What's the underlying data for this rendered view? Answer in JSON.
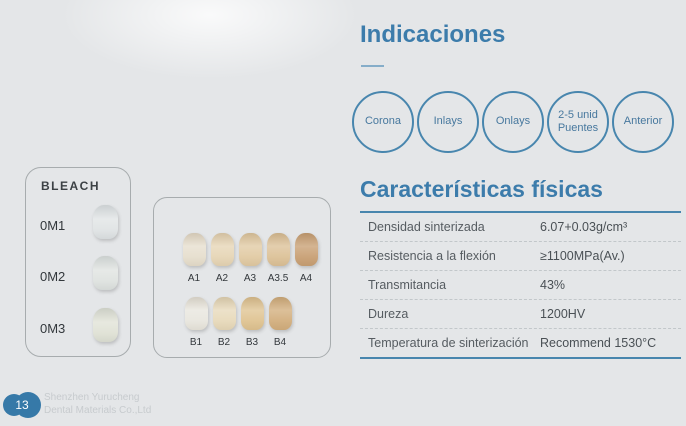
{
  "page": {
    "background": "#e4e6e8",
    "accent_blue": "#3c7cab",
    "circle_blue": "#4886ae"
  },
  "indications": {
    "title": "Indicaciones",
    "circles": [
      {
        "label": "Corona",
        "line1": "Corona",
        "line2": ""
      },
      {
        "label": "Inlays",
        "line1": "Inlays",
        "line2": ""
      },
      {
        "label": "Onlays",
        "line1": "Onlays",
        "line2": ""
      },
      {
        "label": "2-5 unid Puentes",
        "line1": "2-5 unid",
        "line2": "Puentes"
      },
      {
        "label": "Anterior",
        "line1": "Anterior",
        "line2": ""
      }
    ]
  },
  "characteristics": {
    "title": "Características físicas",
    "rows": [
      {
        "label": "Densidad sinterizada",
        "value": "6.07+0.03g/cm³"
      },
      {
        "label": "Resistencia a la flexión",
        "value": "≥1100MPa(Av.)"
      },
      {
        "label": "Transmitancia",
        "value": "43%"
      },
      {
        "label": "Dureza",
        "value": "1200HV"
      },
      {
        "label": "Temperatura de sinterización",
        "value": "Recommend 1530°C"
      }
    ]
  },
  "shade_panels": {
    "bleach": {
      "title": "BLEACH",
      "shades": [
        {
          "label": "0M1",
          "color": "#dde1e2"
        },
        {
          "label": "0M2",
          "color": "#dce0dd"
        },
        {
          "label": "0M3",
          "color": "#dddfd2"
        }
      ]
    },
    "vita": {
      "row_a": [
        {
          "label": "A1",
          "color": "#e6decd"
        },
        {
          "label": "A2",
          "color": "#e6d5b5"
        },
        {
          "label": "A3",
          "color": "#e1caa3"
        },
        {
          "label": "A3.5",
          "color": "#dcc197"
        },
        {
          "label": "A4",
          "color": "#c89f73"
        }
      ],
      "row_b": [
        {
          "label": "B1",
          "color": "#e8e6de"
        },
        {
          "label": "B2",
          "color": "#e7d9ba"
        },
        {
          "label": "B3",
          "color": "#dfc391"
        },
        {
          "label": "B4",
          "color": "#d2ae7d"
        }
      ]
    }
  },
  "footer": {
    "page_number": "13",
    "company_line1": "Shenzhen Yurucheng",
    "company_line2": "Dental Materials Co.,Ltd"
  }
}
